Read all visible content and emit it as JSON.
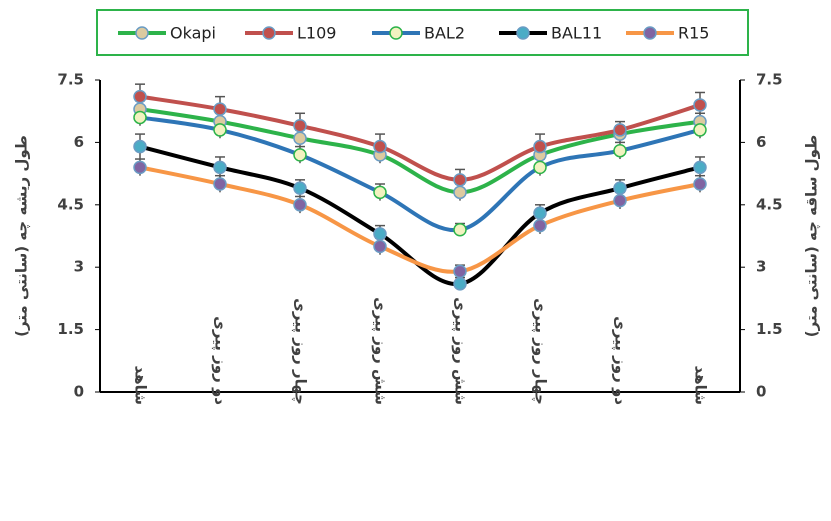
{
  "chart_data": {
    "type": "line",
    "y_label": "طول ریشه چه (سانتی متر)",
    "y2_label": "طول ساقه چه (سانتی متر)",
    "categories": [
      "شاهد",
      "دو روز پیری",
      "چهار روز پیری",
      "شش روز پیری",
      "شش روز پیری",
      "چهار روز پیری",
      "دو روز پیری",
      "شاهد"
    ],
    "ylim": [
      0,
      7.5
    ],
    "yticks": [
      0,
      1.5,
      3,
      4.5,
      6,
      7.5
    ],
    "y2lim": [
      0,
      7.5
    ],
    "y2ticks": [
      0,
      1.5,
      3,
      4.5,
      6,
      7.5
    ],
    "series": [
      {
        "name": "Okapi",
        "color": "#2db34a",
        "marker_color": "#dccaa0",
        "values": [
          6.8,
          6.5,
          6.1,
          5.7,
          4.8,
          5.7,
          6.2,
          6.5
        ],
        "errors": [
          0.2,
          0.2,
          0.2,
          0.2,
          0.2,
          0.2,
          0.2,
          0.2
        ]
      },
      {
        "name": "L109",
        "color": "#c0504d",
        "marker_color": "#c0504d",
        "values": [
          7.1,
          6.8,
          6.4,
          5.9,
          5.1,
          5.9,
          6.3,
          6.9
        ],
        "errors": [
          0.3,
          0.3,
          0.3,
          0.3,
          0.25,
          0.3,
          0.2,
          0.3
        ]
      },
      {
        "name": "BAL2",
        "color": "#2e75b6",
        "marker_color": "#f2f2c0",
        "values": [
          6.6,
          6.3,
          5.7,
          4.8,
          3.9,
          5.4,
          5.8,
          6.3
        ],
        "errors": [
          0.2,
          0.2,
          0.2,
          0.2,
          0.15,
          0.2,
          0.2,
          0.2
        ]
      },
      {
        "name": "BAL11",
        "color": "#000000",
        "marker_color": "#4bacc6",
        "values": [
          5.9,
          5.4,
          4.9,
          3.8,
          2.6,
          4.3,
          4.9,
          5.4
        ],
        "errors": [
          0.3,
          0.25,
          0.2,
          0.2,
          0.15,
          0.2,
          0.2,
          0.25
        ]
      },
      {
        "name": "R15",
        "color": "#f79646",
        "marker_color": "#8064a2",
        "values": [
          5.4,
          5.0,
          4.5,
          3.5,
          2.9,
          4.0,
          4.6,
          5.0
        ],
        "errors": [
          0.2,
          0.2,
          0.2,
          0.2,
          0.15,
          0.2,
          0.2,
          0.2
        ]
      }
    ]
  }
}
